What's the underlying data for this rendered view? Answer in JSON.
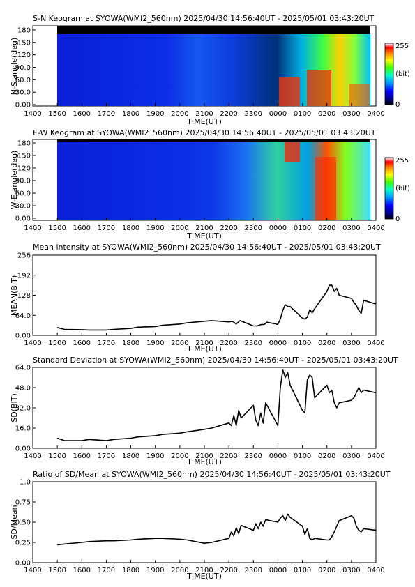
{
  "time_axis": {
    "tick_labels": [
      "1400",
      "1500",
      "1600",
      "1700",
      "1800",
      "1900",
      "2000",
      "2100",
      "2200",
      "2300",
      "0000",
      "0100",
      "0200",
      "0300",
      "0400"
    ],
    "label": "TIME(UT)"
  },
  "colorbar": {
    "max_label": "255",
    "unit_label": "(bit)",
    "min_label": "0"
  },
  "keograms": [
    {
      "title": "S-N Keogram at SYOWA(WMI2_560nm)     2025/04/30 14:56:40UT - 2025/05/01 03:43:20UT",
      "ylabel": "N-S angle(deg)",
      "yticks": [
        "180",
        "150",
        "120",
        "90.0",
        "60.0",
        "30.0",
        "0.00"
      ]
    },
    {
      "title": "E-W Keogram at SYOWA(WMI2_560nm)     2025/04/30 14:56:40UT - 2025/05/01 03:43:20UT",
      "ylabel": "W-E angle(deg)",
      "yticks": [
        "180",
        "150",
        "120",
        "90.0",
        "60.0",
        "30.0",
        "0.00"
      ]
    }
  ],
  "chart_data": [
    {
      "type": "line",
      "title": "Mean intensity at SYOWA(WMI2_560nm)     2025/04/30 14:56:40UT - 2025/05/01 03:43:20UT",
      "ylabel": "MEAN(BIT)",
      "ylim": [
        0,
        256
      ],
      "yticks": [
        "0.00",
        "64.0",
        "128",
        "192",
        "256"
      ],
      "x": [
        1500,
        1530,
        1600,
        1630,
        1700,
        1730,
        1800,
        1830,
        1900,
        1930,
        2000,
        2030,
        2100,
        2130,
        2200,
        2215,
        2230,
        2245,
        2300,
        2315,
        2330,
        2345,
        2355,
        2400,
        2410,
        2420,
        2430,
        2440,
        2450,
        2500,
        2510,
        2520,
        2530,
        2540,
        2550,
        2600,
        2610,
        2620,
        2630,
        2640,
        2650,
        2700,
        2710,
        2720,
        2730,
        2740,
        2750,
        2800
      ],
      "series": [
        {
          "values": [
            25,
            19,
            18,
            17,
            17,
            19,
            22,
            26,
            28,
            32,
            36,
            40,
            45,
            47,
            43,
            45,
            36,
            47,
            30,
            30,
            34,
            35,
            42,
            35,
            52,
            80,
            98,
            92,
            92,
            55,
            52,
            58,
            82,
            72,
            85,
            140,
            160,
            160,
            140,
            150,
            128,
            118,
            105,
            95,
            80,
            70,
            112,
            100
          ]
        }
      ]
    },
    {
      "type": "line",
      "title": "Standard Deviation at SYOWA(WMI2_560nm)     2025/04/30 14:56:40UT - 2025/05/01 03:43:20UT",
      "ylabel": "SD(BIT)",
      "ylim": [
        0,
        64
      ],
      "yticks": [
        "0.00",
        "16.0",
        "32.0",
        "48.0",
        "64.0"
      ],
      "x": [
        1500,
        1530,
        1600,
        1630,
        1700,
        1730,
        1800,
        1830,
        1900,
        1930,
        2000,
        2030,
        2100,
        2130,
        2200,
        2210,
        2220,
        2230,
        2240,
        2250,
        2300,
        2310,
        2320,
        2330,
        2340,
        2350,
        2400,
        2410,
        2420,
        2430,
        2440,
        2450,
        2500,
        2510,
        2520,
        2530,
        2540,
        2550,
        2600,
        2610,
        2620,
        2630,
        2640,
        2650,
        2700,
        2710,
        2720,
        2730,
        2740,
        2750,
        2800
      ],
      "series": [
        {
          "values": [
            8,
            6,
            6,
            7,
            6,
            7,
            8,
            9,
            10,
            11,
            12,
            13,
            15,
            16,
            20,
            18,
            26,
            18,
            30,
            24,
            34,
            22,
            18,
            28,
            20,
            36,
            18,
            48,
            62,
            56,
            60,
            50,
            30,
            28,
            54,
            58,
            56,
            40,
            50,
            44,
            46,
            36,
            32,
            36,
            38,
            40,
            44,
            48,
            44,
            46,
            44
          ]
        }
      ]
    },
    {
      "type": "line",
      "title": "Ratio of SD/Mean at SYOWA(WMI2_560nm)     2025/04/30 14:56:40UT - 2025/05/01 03:43:20UT",
      "ylabel": "SD/Mean",
      "ylim": [
        0,
        1.0
      ],
      "yticks": [
        "0.00",
        "0.25",
        "0.50",
        "0.75",
        "1.0"
      ],
      "x": [
        1500,
        1530,
        1600,
        1630,
        1700,
        1730,
        1800,
        1830,
        1900,
        1930,
        2000,
        2030,
        2100,
        2130,
        2200,
        2210,
        2220,
        2230,
        2240,
        2250,
        2300,
        2310,
        2320,
        2330,
        2340,
        2350,
        2400,
        2410,
        2420,
        2430,
        2440,
        2450,
        2500,
        2510,
        2520,
        2530,
        2540,
        2550,
        2600,
        2610,
        2620,
        2630,
        2640,
        2650,
        2700,
        2710,
        2720,
        2730,
        2740,
        2750,
        2800
      ],
      "series": [
        {
          "values": [
            0.22,
            0.23,
            0.25,
            0.26,
            0.27,
            0.27,
            0.28,
            0.29,
            0.3,
            0.3,
            0.29,
            0.28,
            0.24,
            0.25,
            0.3,
            0.38,
            0.33,
            0.43,
            0.36,
            0.46,
            0.4,
            0.48,
            0.42,
            0.5,
            0.45,
            0.53,
            0.5,
            0.55,
            0.58,
            0.52,
            0.6,
            0.56,
            0.45,
            0.35,
            0.42,
            0.3,
            0.28,
            0.3,
            0.28,
            0.28,
            0.32,
            0.38,
            0.45,
            0.52,
            0.58,
            0.55,
            0.45,
            0.4,
            0.38,
            0.42,
            0.4
          ]
        }
      ]
    }
  ]
}
